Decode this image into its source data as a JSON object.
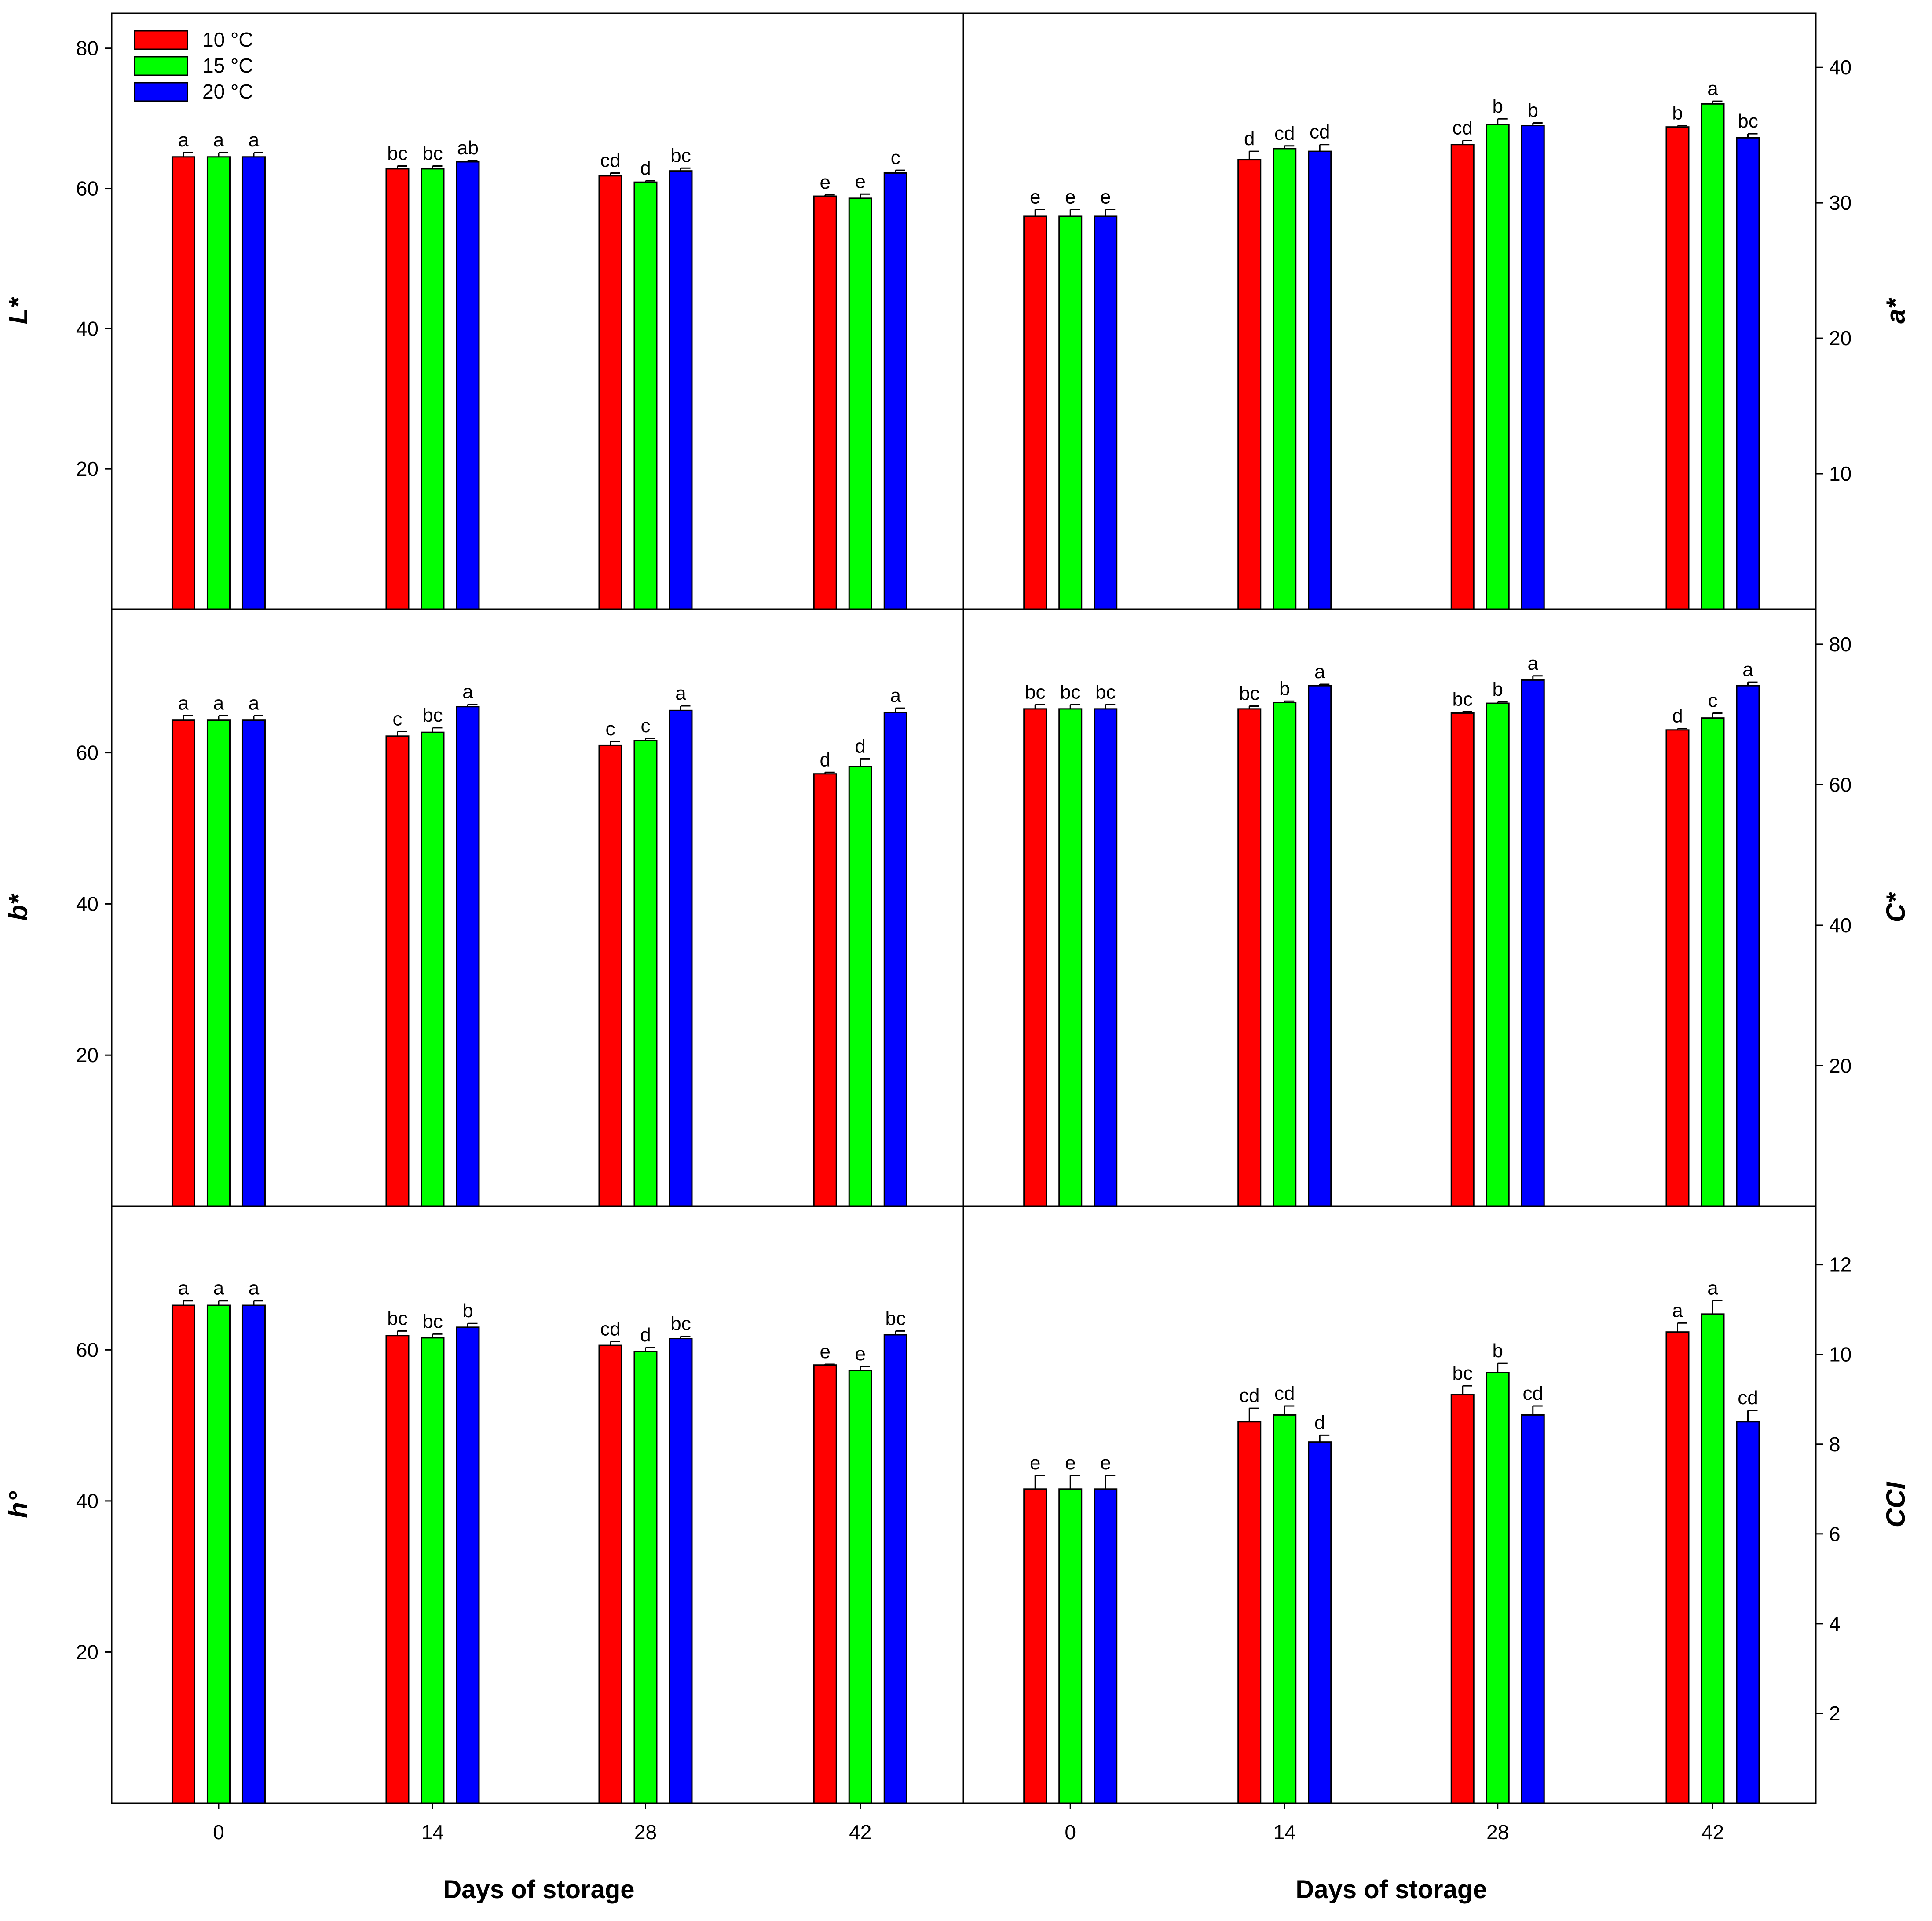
{
  "legend": {
    "placement": "top-left",
    "items": [
      {
        "label": "10 °C",
        "color": "#ff0000"
      },
      {
        "label": "15 °C",
        "color": "#00ff00"
      },
      {
        "label": "20 °C",
        "color": "#0000ff"
      }
    ]
  },
  "xlabel": "Days of storage",
  "chart_data": [
    {
      "type": "bar",
      "panel": "top-left",
      "ylabel": "L*",
      "y_axis_side": "left",
      "categories": [
        "0",
        "14",
        "28",
        "42"
      ],
      "ylim": [
        0,
        85
      ],
      "yticks": [
        20,
        40,
        60,
        80
      ],
      "series": [
        {
          "name": "10 °C",
          "values": [
            64.5,
            62.8,
            61.8,
            58.9
          ],
          "errors": [
            0.6,
            0.4,
            0.4,
            0.2
          ],
          "letters": [
            "a",
            "bc",
            "cd",
            "e"
          ]
        },
        {
          "name": "15 °C",
          "values": [
            64.5,
            62.8,
            60.9,
            58.6
          ],
          "errors": [
            0.6,
            0.4,
            0.2,
            0.6
          ],
          "letters": [
            "a",
            "bc",
            "d",
            "e"
          ]
        },
        {
          "name": "20 °C",
          "values": [
            64.5,
            63.8,
            62.5,
            62.2
          ],
          "errors": [
            0.6,
            0.2,
            0.4,
            0.4
          ],
          "letters": [
            "a",
            "ab",
            "bc",
            "c"
          ]
        }
      ]
    },
    {
      "type": "bar",
      "panel": "top-right",
      "ylabel": "a*",
      "y_axis_side": "right",
      "categories": [
        "0",
        "14",
        "28",
        "42"
      ],
      "ylim": [
        0,
        44
      ],
      "yticks": [
        10,
        20,
        30,
        40
      ],
      "series": [
        {
          "name": "10 °C",
          "values": [
            29,
            33.2,
            34.3,
            35.6
          ],
          "errors": [
            0.5,
            0.6,
            0.3,
            0.1
          ],
          "letters": [
            "e",
            "d",
            "cd",
            "b"
          ]
        },
        {
          "name": "15 °C",
          "values": [
            29,
            34,
            35.8,
            37.3
          ],
          "errors": [
            0.5,
            0.2,
            0.4,
            0.2
          ],
          "letters": [
            "e",
            "cd",
            "b",
            "a"
          ]
        },
        {
          "name": "20 °C",
          "values": [
            29,
            33.8,
            35.7,
            34.8
          ],
          "errors": [
            0.5,
            0.5,
            0.2,
            0.3
          ],
          "letters": [
            "e",
            "cd",
            "b",
            "bc"
          ]
        }
      ]
    },
    {
      "type": "bar",
      "panel": "middle-left",
      "ylabel": "b*",
      "y_axis_side": "left",
      "categories": [
        "0",
        "14",
        "28",
        "42"
      ],
      "ylim": [
        0,
        79
      ],
      "yticks": [
        20,
        40,
        60
      ],
      "series": [
        {
          "name": "10 °C",
          "values": [
            64.3,
            62.2,
            61,
            57.2
          ],
          "errors": [
            0.6,
            0.6,
            0.5,
            0.2
          ],
          "letters": [
            "a",
            "c",
            "c",
            "d"
          ]
        },
        {
          "name": "15 °C",
          "values": [
            64.3,
            62.7,
            61.6,
            58.2
          ],
          "errors": [
            0.6,
            0.6,
            0.3,
            1.0
          ],
          "letters": [
            "a",
            "bc",
            "c",
            "d"
          ]
        },
        {
          "name": "20 °C",
          "values": [
            64.3,
            66.1,
            65.6,
            65.3
          ],
          "errors": [
            0.6,
            0.3,
            0.6,
            0.6
          ],
          "letters": [
            "a",
            "a",
            "a",
            "a"
          ]
        }
      ]
    },
    {
      "type": "bar",
      "panel": "middle-right",
      "ylabel": "C*",
      "y_axis_side": "right",
      "categories": [
        "0",
        "14",
        "28",
        "42"
      ],
      "ylim": [
        0,
        85
      ],
      "yticks": [
        20,
        40,
        60,
        80
      ],
      "series": [
        {
          "name": "10 °C",
          "values": [
            70.8,
            70.8,
            70.2,
            67.8
          ],
          "errors": [
            0.6,
            0.4,
            0.2,
            0.2
          ],
          "letters": [
            "bc",
            "bc",
            "bc",
            "d"
          ]
        },
        {
          "name": "15 °C",
          "values": [
            70.8,
            71.7,
            71.6,
            69.5
          ],
          "errors": [
            0.6,
            0.2,
            0.2,
            0.7
          ],
          "letters": [
            "bc",
            "b",
            "b",
            "c"
          ]
        },
        {
          "name": "20 °C",
          "values": [
            70.8,
            74.1,
            74.9,
            74.1
          ],
          "errors": [
            0.6,
            0.2,
            0.6,
            0.5
          ],
          "letters": [
            "bc",
            "a",
            "a",
            "a"
          ]
        }
      ]
    },
    {
      "type": "bar",
      "panel": "bottom-left",
      "ylabel": "h°",
      "y_axis_side": "left",
      "categories": [
        "0",
        "14",
        "28",
        "42"
      ],
      "ylim": [
        0,
        79
      ],
      "yticks": [
        20,
        40,
        60
      ],
      "series": [
        {
          "name": "10 °C",
          "values": [
            65.9,
            61.9,
            60.6,
            58
          ],
          "errors": [
            0.6,
            0.6,
            0.5,
            0.1
          ],
          "letters": [
            "a",
            "bc",
            "cd",
            "e"
          ]
        },
        {
          "name": "15 °C",
          "values": [
            65.9,
            61.6,
            59.8,
            57.3
          ],
          "errors": [
            0.6,
            0.5,
            0.5,
            0.5
          ],
          "letters": [
            "a",
            "bc",
            "d",
            "e"
          ]
        },
        {
          "name": "20 °C",
          "values": [
            65.9,
            63,
            61.5,
            62
          ],
          "errors": [
            0.6,
            0.5,
            0.3,
            0.5
          ],
          "letters": [
            "a",
            "b",
            "bc",
            "bc"
          ]
        }
      ]
    },
    {
      "type": "bar",
      "panel": "bottom-right",
      "ylabel": "CCI",
      "y_axis_side": "right",
      "categories": [
        "0",
        "14",
        "28",
        "42"
      ],
      "ylim": [
        0,
        13.3
      ],
      "yticks": [
        2,
        4,
        6,
        8,
        10,
        12
      ],
      "series": [
        {
          "name": "10 °C",
          "values": [
            7,
            8.5,
            9.1,
            10.5
          ],
          "errors": [
            0.3,
            0.3,
            0.2,
            0.2
          ],
          "letters": [
            "e",
            "cd",
            "bc",
            "a"
          ]
        },
        {
          "name": "15 °C",
          "values": [
            7,
            8.65,
            9.6,
            10.9
          ],
          "errors": [
            0.3,
            0.2,
            0.2,
            0.3
          ],
          "letters": [
            "e",
            "cd",
            "b",
            "a"
          ]
        },
        {
          "name": "20 °C",
          "values": [
            7,
            8.05,
            8.65,
            8.5
          ],
          "errors": [
            0.3,
            0.15,
            0.2,
            0.25
          ],
          "letters": [
            "e",
            "d",
            "cd",
            "cd"
          ]
        }
      ]
    }
  ]
}
